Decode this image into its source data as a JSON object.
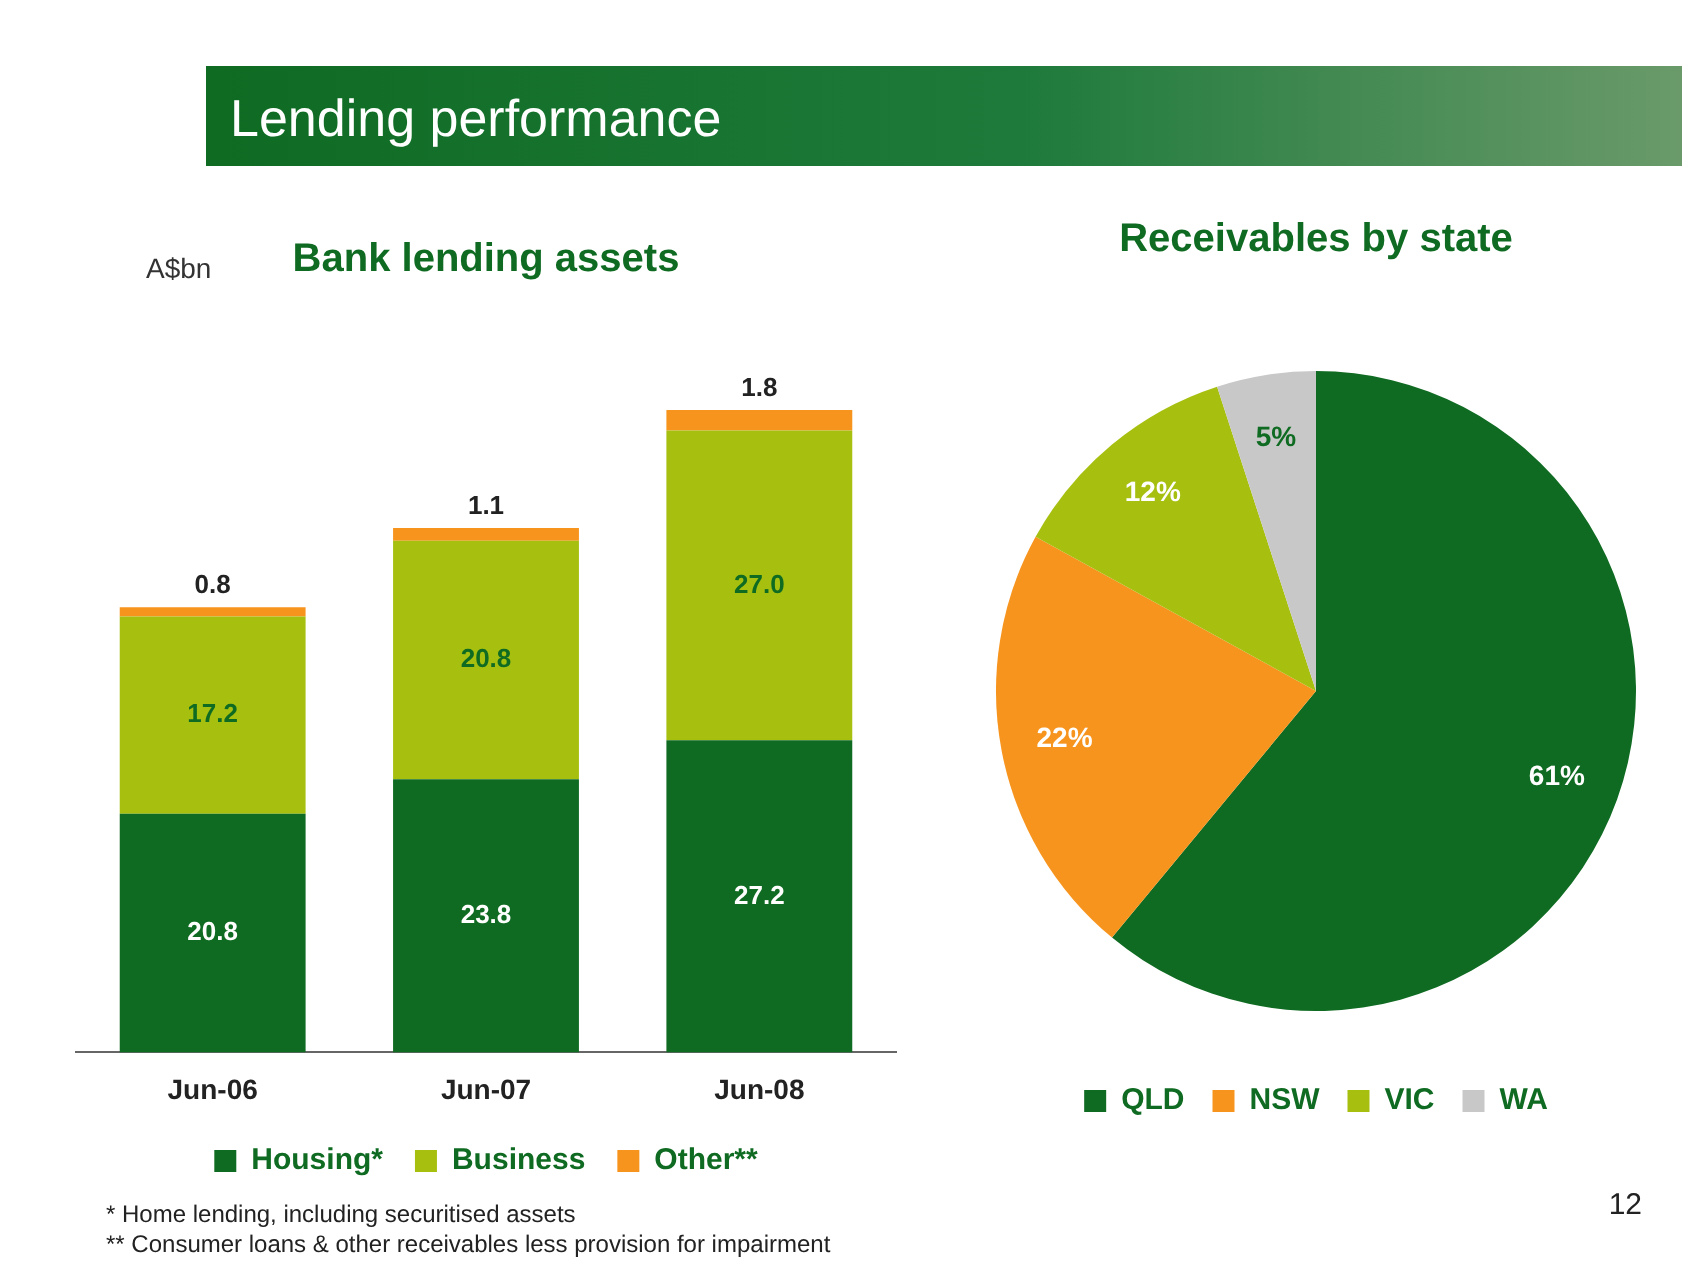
{
  "chart_data": [
    {
      "type": "other",
      "title": "Lending performance",
      "annotations": [
        "* Home lending, including securitised assets",
        "** Consumer loans & other receivables less provision for impairment",
        "12"
      ]
    },
    {
      "type": "bar",
      "title": "Bank lending assets",
      "ylabel": "A$bn",
      "categories": [
        "Jun-06",
        "Jun-07",
        "Jun-08"
      ],
      "stacked": true,
      "legend": "bottom",
      "series": [
        {
          "name": "Housing*",
          "color": "#0f6b22",
          "values": [
            20.8,
            23.8,
            27.2
          ],
          "value_labels": [
            "20.8",
            "23.8",
            "27.2"
          ]
        },
        {
          "name": "Business",
          "color": "#a7c010",
          "values": [
            17.2,
            20.8,
            27.0
          ],
          "value_labels": [
            "17.2",
            "20.8",
            "27.0"
          ]
        },
        {
          "name": "Other**",
          "color": "#f7941d",
          "values": [
            0.8,
            1.1,
            1.8
          ],
          "value_labels": [
            "0.8",
            "1.1",
            "1.8"
          ]
        }
      ]
    },
    {
      "type": "pie",
      "title": "Receivables by state",
      "categories": [
        "QLD",
        "NSW",
        "VIC",
        "WA"
      ],
      "values": [
        61,
        22,
        12,
        5
      ],
      "value_labels": [
        "61%",
        "22%",
        "12%",
        "5%"
      ],
      "colors": [
        "#0f6b22",
        "#f7941d",
        "#a7c010",
        "#c8c8c8"
      ],
      "legend": "bottom"
    }
  ]
}
